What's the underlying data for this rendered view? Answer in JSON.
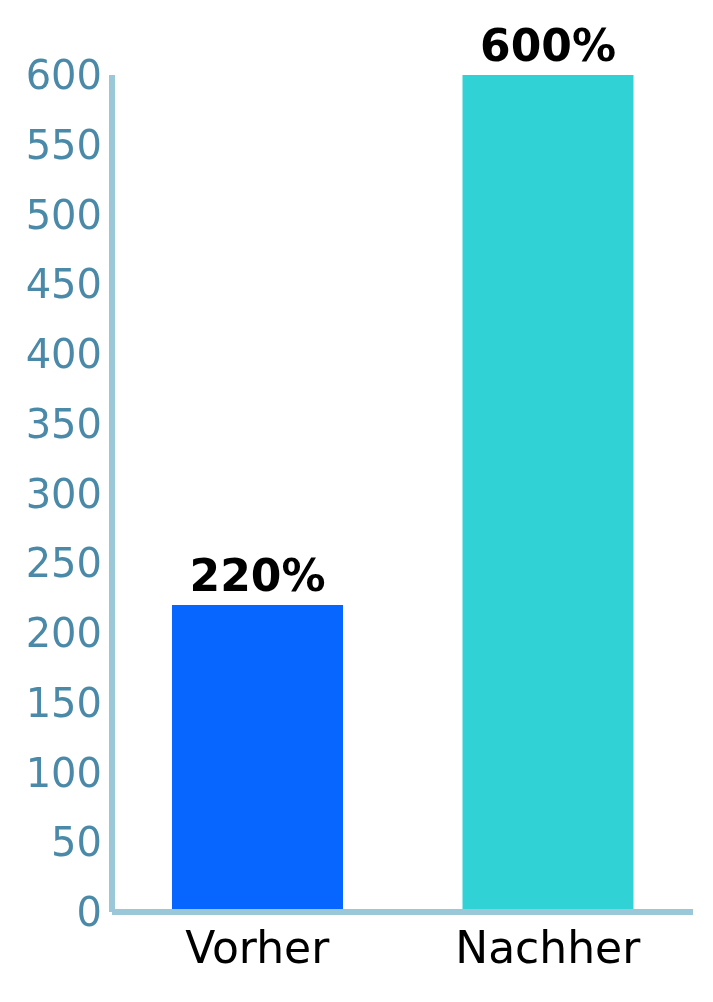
{
  "chart_data": {
    "type": "bar",
    "categories": [
      "Vorher",
      "Nachher"
    ],
    "values": [
      220,
      600
    ],
    "colors": [
      "#0766ff",
      "#30d2d6"
    ],
    "value_labels": [
      "220%",
      "600%"
    ],
    "ylim": [
      0,
      600
    ],
    "yticks": [
      0,
      50,
      100,
      150,
      200,
      250,
      300,
      350,
      400,
      450,
      500,
      550,
      600
    ],
    "grid": false
  }
}
